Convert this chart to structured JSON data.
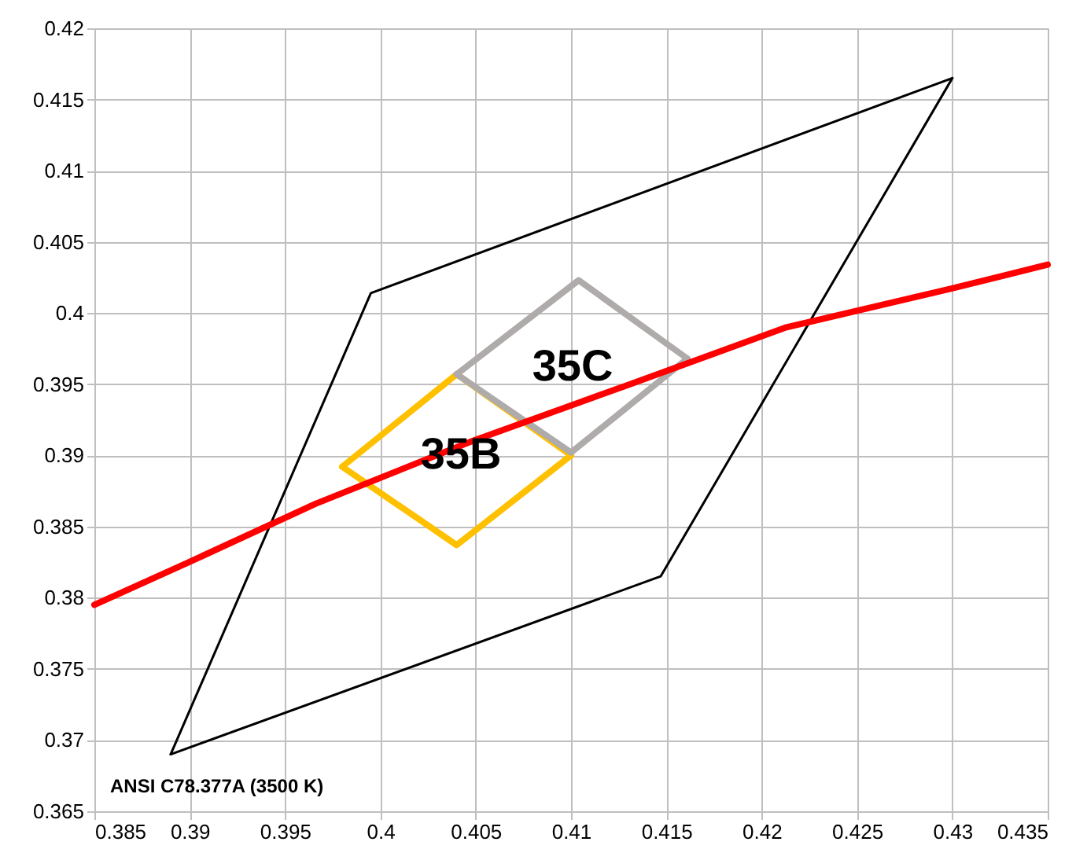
{
  "chart_data": {
    "type": "line",
    "xlim": [
      0.385,
      0.435
    ],
    "xticks": [
      0.385,
      0.39,
      0.395,
      0.4,
      0.405,
      0.41,
      0.415,
      0.42,
      0.425,
      0.43,
      0.435
    ],
    "ylim": [
      0.365,
      0.42
    ],
    "yticks": [
      0.365,
      0.37,
      0.375,
      0.38,
      0.385,
      0.39,
      0.395,
      0.4,
      0.405,
      0.41,
      0.415,
      0.42
    ],
    "grid": true,
    "marker": "none",
    "series": [
      {
        "color": "#000000",
        "x": [
          0.389,
          0.3995,
          0.43
        ],
        "values": [
          0.369,
          0.4014,
          0.4165
        ]
      },
      {
        "color": "#000000",
        "x": [
          0.389,
          0.4147,
          0.43
        ],
        "values": [
          0.369,
          0.3815,
          0.4165
        ]
      },
      {
        "color": "#ffc000",
        "x": [
          0.398,
          0.404,
          0.41
        ],
        "values": [
          0.3892,
          0.3957,
          0.39
        ]
      },
      {
        "color": "#ffc000",
        "x": [
          0.398,
          0.404,
          0.41
        ],
        "values": [
          0.3892,
          0.3837,
          0.39
        ]
      },
      {
        "color": "#afabab",
        "x": [
          0.404,
          0.4104,
          0.4161
        ],
        "values": [
          0.3957,
          0.4023,
          0.3968
        ]
      },
      {
        "color": "#afabab",
        "x": [
          0.404,
          0.41,
          0.4161
        ],
        "values": [
          0.3957,
          0.3902,
          0.3968
        ]
      },
      {
        "color": "#ff0000",
        "x": [
          0.385,
          0.3898,
          0.3966,
          0.4048,
          0.4131,
          0.4213,
          0.4299,
          0.435
        ],
        "values": [
          0.3795,
          0.3824,
          0.3866,
          0.391,
          0.395,
          0.399,
          0.4017,
          0.4034
        ]
      }
    ],
    "annotations": [
      "35B",
      "35C",
      "ANSI C78.377A (3500 K)"
    ]
  }
}
